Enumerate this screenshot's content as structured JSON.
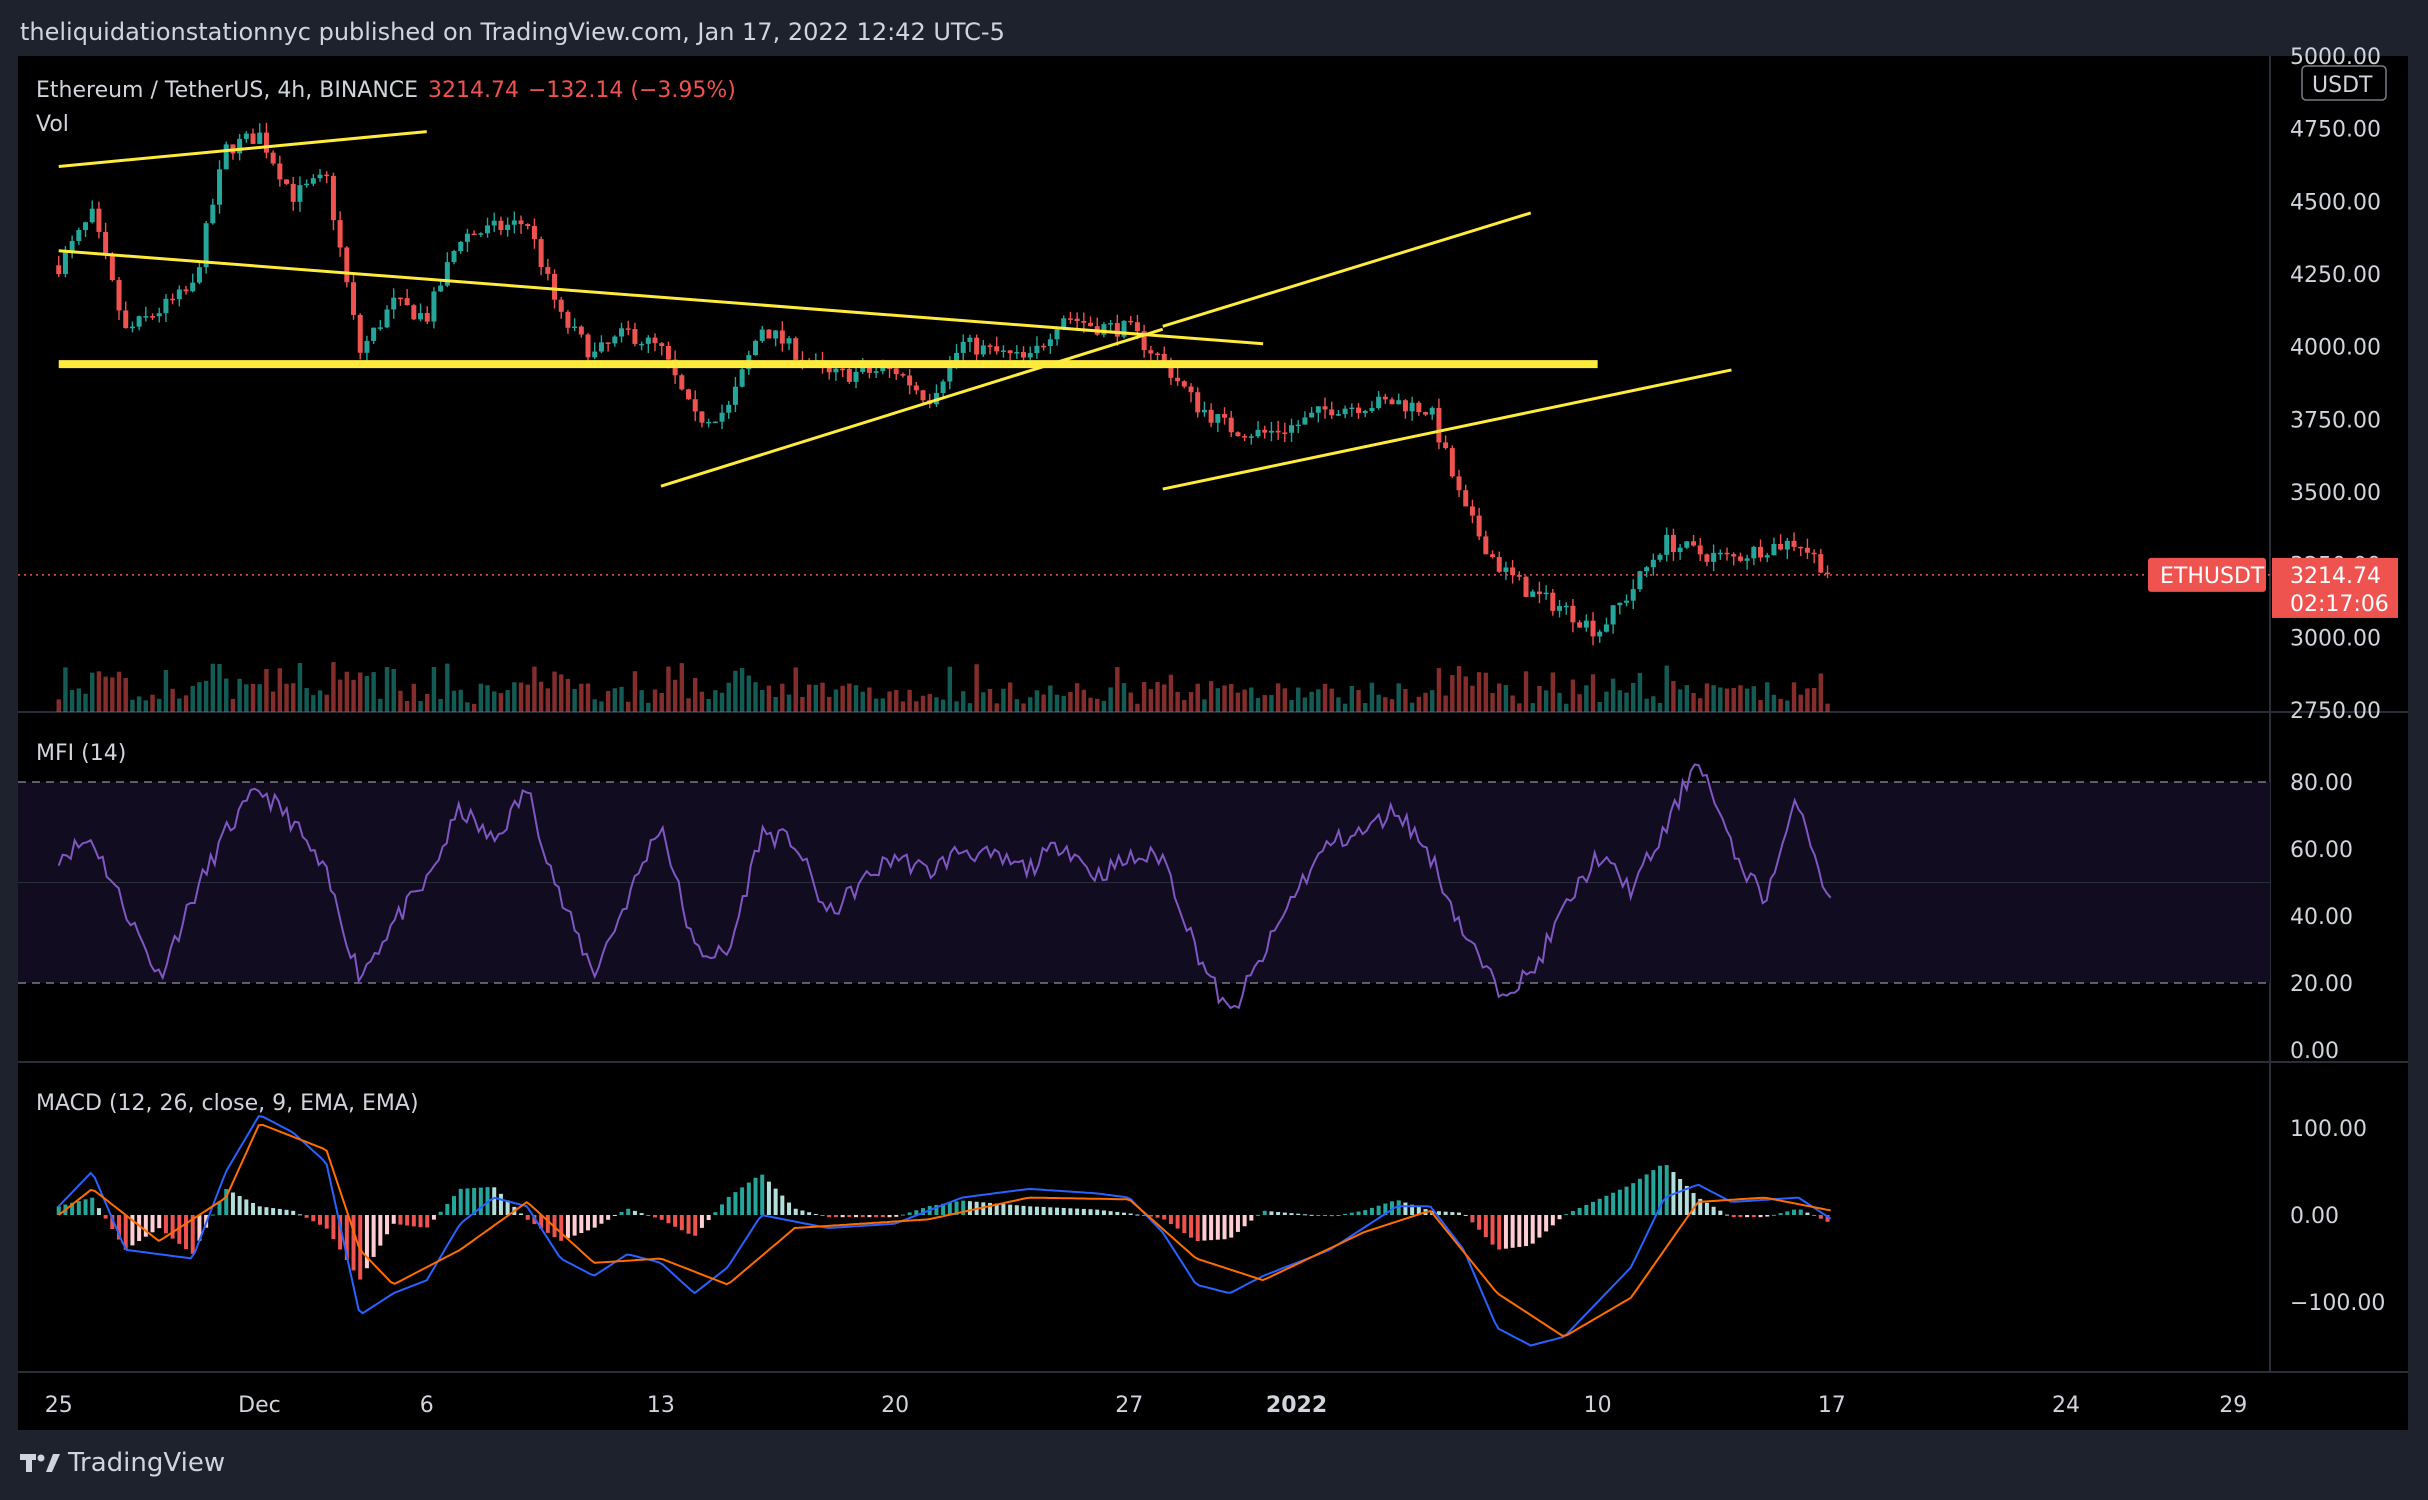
{
  "header": {
    "publish_line": "theliquidationstationnyc published on TradingView.com, Jan 17, 2022 12:42 UTC-5"
  },
  "footer": {
    "brand": "TradingView"
  },
  "colors": {
    "up": "#26a69a",
    "down": "#ef5350",
    "trend": "#ffeb3b",
    "mfi": "#7e57c2",
    "macd": "#2962ff",
    "signal": "#ff6d00",
    "bg": "#000000"
  },
  "chart_data": [
    {
      "type": "candlestick",
      "symbol_line": "Ethereum / TetherUS, 4h, BINANCE",
      "last_price": "3214.74",
      "change": "−132.14 (−3.95%)",
      "volume_label": "Vol",
      "currency": "USDT",
      "ticker": "ETHUSDT",
      "countdown": "02:17:06",
      "ylim": [
        2750,
        5000
      ],
      "yticks": [
        "5000.00",
        "4750.00",
        "4500.00",
        "4250.00",
        "4000.00",
        "3750.00",
        "3500.00",
        "3250.00",
        "3000.00",
        "2750.00"
      ],
      "x_tick_labels": [
        "25",
        "Dec",
        "6",
        "13",
        "20",
        "27",
        "2022",
        "10",
        "17",
        "24",
        "29"
      ],
      "keypoints": [
        {
          "x": "2021-11-25",
          "close": 4280
        },
        {
          "x": "2021-11-26",
          "close": 4450
        },
        {
          "x": "2021-11-27",
          "close": 4050
        },
        {
          "x": "2021-11-29",
          "close": 4200
        },
        {
          "x": "2021-11-30",
          "close": 4680
        },
        {
          "x": "2021-12-01",
          "close": 4730
        },
        {
          "x": "2021-12-02",
          "close": 4520
        },
        {
          "x": "2021-12-03",
          "close": 4580
        },
        {
          "x": "2021-12-04",
          "close": 3980
        },
        {
          "x": "2021-12-05",
          "close": 4150
        },
        {
          "x": "2021-12-06",
          "close": 4100
        },
        {
          "x": "2021-12-07",
          "close": 4380
        },
        {
          "x": "2021-12-09",
          "close": 4430
        },
        {
          "x": "2021-12-10",
          "close": 4100
        },
        {
          "x": "2021-12-11",
          "close": 3970
        },
        {
          "x": "2021-12-12",
          "close": 4050
        },
        {
          "x": "2021-12-13",
          "close": 3990
        },
        {
          "x": "2021-12-14",
          "close": 3750
        },
        {
          "x": "2021-12-15",
          "close": 3780
        },
        {
          "x": "2021-12-16",
          "close": 4070
        },
        {
          "x": "2021-12-18",
          "close": 3900
        },
        {
          "x": "2021-12-20",
          "close": 3920
        },
        {
          "x": "2021-12-21",
          "close": 3820
        },
        {
          "x": "2021-12-22",
          "close": 4010
        },
        {
          "x": "2021-12-24",
          "close": 3950
        },
        {
          "x": "2021-12-25",
          "close": 4110
        },
        {
          "x": "2021-12-26",
          "close": 4070
        },
        {
          "x": "2021-12-27",
          "close": 4060
        },
        {
          "x": "2021-12-28",
          "close": 3950
        },
        {
          "x": "2021-12-29",
          "close": 3800
        },
        {
          "x": "2021-12-30",
          "close": 3720
        },
        {
          "x": "2021-12-31",
          "close": 3700
        },
        {
          "x": "2022-01-01",
          "close": 3730
        },
        {
          "x": "2022-01-02",
          "close": 3790
        },
        {
          "x": "2022-01-04",
          "close": 3810
        },
        {
          "x": "2022-01-05",
          "close": 3780
        },
        {
          "x": "2022-01-06",
          "close": 3440
        },
        {
          "x": "2022-01-07",
          "close": 3250
        },
        {
          "x": "2022-01-08",
          "close": 3150
        },
        {
          "x": "2022-01-09",
          "close": 3100
        },
        {
          "x": "2022-01-10",
          "close": 3020
        },
        {
          "x": "2022-01-11",
          "close": 3160
        },
        {
          "x": "2022-01-12",
          "close": 3330
        },
        {
          "x": "2022-01-13",
          "close": 3290
        },
        {
          "x": "2022-01-14",
          "close": 3270
        },
        {
          "x": "2022-01-15",
          "close": 3310
        },
        {
          "x": "2022-01-16",
          "close": 3330
        },
        {
          "x": "2022-01-17",
          "close": 3214.74
        }
      ],
      "trendlines": [
        {
          "x1": "2021-11-25",
          "y1": 4620,
          "x2": "2021-12-06",
          "y2": 4740
        },
        {
          "x1": "2021-11-25",
          "y1": 4330,
          "x2": "2021-12-31",
          "y2": 4010
        },
        {
          "x1": "2021-11-25",
          "y1": 3940,
          "x2": "2022-01-10",
          "y2": 3940
        },
        {
          "x1": "2021-12-13",
          "y1": 3520,
          "x2": "2021-12-28",
          "y2": 4060
        },
        {
          "x1": "2021-12-28",
          "y1": 4070,
          "x2": "2022-01-08",
          "y2": 4460
        },
        {
          "x1": "2021-12-28",
          "y1": 3510,
          "x2": "2022-01-14",
          "y2": 3920
        }
      ]
    },
    {
      "type": "line",
      "label": "MFI (14)",
      "ylim": [
        0,
        100
      ],
      "yticks": [
        "80.00",
        "60.00",
        "40.00",
        "20.00",
        "0.00"
      ],
      "band": [
        20,
        80
      ],
      "keypoints": [
        {
          "x": "2021-11-25",
          "y": 58
        },
        {
          "x": "2021-11-26",
          "y": 63
        },
        {
          "x": "2021-11-27",
          "y": 42
        },
        {
          "x": "2021-11-28",
          "y": 22
        },
        {
          "x": "2021-11-29",
          "y": 45
        },
        {
          "x": "2021-11-30",
          "y": 65
        },
        {
          "x": "2021-12-01",
          "y": 78
        },
        {
          "x": "2021-12-02",
          "y": 68
        },
        {
          "x": "2021-12-03",
          "y": 52
        },
        {
          "x": "2021-12-04",
          "y": 22
        },
        {
          "x": "2021-12-05",
          "y": 38
        },
        {
          "x": "2021-12-06",
          "y": 50
        },
        {
          "x": "2021-12-07",
          "y": 72
        },
        {
          "x": "2021-12-08",
          "y": 62
        },
        {
          "x": "2021-12-09",
          "y": 78
        },
        {
          "x": "2021-12-10",
          "y": 45
        },
        {
          "x": "2021-12-11",
          "y": 23
        },
        {
          "x": "2021-12-12",
          "y": 45
        },
        {
          "x": "2021-12-13",
          "y": 68
        },
        {
          "x": "2021-12-14",
          "y": 30
        },
        {
          "x": "2021-12-15",
          "y": 28
        },
        {
          "x": "2021-12-16",
          "y": 65
        },
        {
          "x": "2021-12-17",
          "y": 62
        },
        {
          "x": "2021-12-18",
          "y": 40
        },
        {
          "x": "2021-12-19",
          "y": 50
        },
        {
          "x": "2021-12-20",
          "y": 58
        },
        {
          "x": "2021-12-21",
          "y": 53
        },
        {
          "x": "2021-12-22",
          "y": 60
        },
        {
          "x": "2021-12-23",
          "y": 57
        },
        {
          "x": "2021-12-24",
          "y": 54
        },
        {
          "x": "2021-12-25",
          "y": 62
        },
        {
          "x": "2021-12-26",
          "y": 52
        },
        {
          "x": "2021-12-27",
          "y": 57
        },
        {
          "x": "2021-12-28",
          "y": 58
        },
        {
          "x": "2021-12-29",
          "y": 30
        },
        {
          "x": "2021-12-30",
          "y": 10
        },
        {
          "x": "2021-12-31",
          "y": 28
        },
        {
          "x": "2022-01-01",
          "y": 48
        },
        {
          "x": "2022-01-02",
          "y": 62
        },
        {
          "x": "2022-01-03",
          "y": 65
        },
        {
          "x": "2022-01-04",
          "y": 72
        },
        {
          "x": "2022-01-05",
          "y": 58
        },
        {
          "x": "2022-01-06",
          "y": 35
        },
        {
          "x": "2022-01-07",
          "y": 18
        },
        {
          "x": "2022-01-08",
          "y": 22
        },
        {
          "x": "2022-01-09",
          "y": 42
        },
        {
          "x": "2022-01-10",
          "y": 58
        },
        {
          "x": "2022-01-11",
          "y": 48
        },
        {
          "x": "2022-01-12",
          "y": 65
        },
        {
          "x": "2022-01-13",
          "y": 88
        },
        {
          "x": "2022-01-14",
          "y": 60
        },
        {
          "x": "2022-01-15",
          "y": 45
        },
        {
          "x": "2022-01-16",
          "y": 75
        },
        {
          "x": "2022-01-17",
          "y": 42
        }
      ]
    },
    {
      "type": "line+histogram",
      "label": "MACD (12, 26, close, 9, EMA, EMA)",
      "ylim": [
        -180,
        180
      ],
      "yticks": [
        "100.00",
        "0.00",
        "−100.00"
      ],
      "macd_keypoints": [
        {
          "x": "2021-11-25",
          "y": 10
        },
        {
          "x": "2021-11-26",
          "y": 50
        },
        {
          "x": "2021-11-27",
          "y": -40
        },
        {
          "x": "2021-11-29",
          "y": -50
        },
        {
          "x": "2021-11-30",
          "y": 50
        },
        {
          "x": "2021-12-01",
          "y": 115
        },
        {
          "x": "2021-12-02",
          "y": 95
        },
        {
          "x": "2021-12-03",
          "y": 60
        },
        {
          "x": "2021-12-04",
          "y": -115
        },
        {
          "x": "2021-12-05",
          "y": -90
        },
        {
          "x": "2021-12-06",
          "y": -75
        },
        {
          "x": "2021-12-07",
          "y": -10
        },
        {
          "x": "2021-12-08",
          "y": 20
        },
        {
          "x": "2021-12-09",
          "y": 10
        },
        {
          "x": "2021-12-10",
          "y": -50
        },
        {
          "x": "2021-12-11",
          "y": -70
        },
        {
          "x": "2021-12-12",
          "y": -45
        },
        {
          "x": "2021-12-13",
          "y": -55
        },
        {
          "x": "2021-12-14",
          "y": -90
        },
        {
          "x": "2021-12-15",
          "y": -60
        },
        {
          "x": "2021-12-16",
          "y": 0
        },
        {
          "x": "2021-12-18",
          "y": -15
        },
        {
          "x": "2021-12-20",
          "y": -10
        },
        {
          "x": "2021-12-22",
          "y": 20
        },
        {
          "x": "2021-12-24",
          "y": 30
        },
        {
          "x": "2021-12-26",
          "y": 25
        },
        {
          "x": "2021-12-27",
          "y": 20
        },
        {
          "x": "2021-12-28",
          "y": -20
        },
        {
          "x": "2021-12-29",
          "y": -80
        },
        {
          "x": "2021-12-30",
          "y": -90
        },
        {
          "x": "2021-12-31",
          "y": -70
        },
        {
          "x": "2022-01-02",
          "y": -40
        },
        {
          "x": "2022-01-04",
          "y": 10
        },
        {
          "x": "2022-01-05",
          "y": 10
        },
        {
          "x": "2022-01-06",
          "y": -40
        },
        {
          "x": "2022-01-07",
          "y": -130
        },
        {
          "x": "2022-01-08",
          "y": -150
        },
        {
          "x": "2022-01-09",
          "y": -140
        },
        {
          "x": "2022-01-10",
          "y": -100
        },
        {
          "x": "2022-01-11",
          "y": -60
        },
        {
          "x": "2022-01-12",
          "y": 20
        },
        {
          "x": "2022-01-13",
          "y": 35
        },
        {
          "x": "2022-01-14",
          "y": 15
        },
        {
          "x": "2022-01-16",
          "y": 20
        },
        {
          "x": "2022-01-17",
          "y": -5
        }
      ],
      "signal_keypoints": [
        {
          "x": "2021-11-25",
          "y": 0
        },
        {
          "x": "2021-11-26",
          "y": 30
        },
        {
          "x": "2021-11-28",
          "y": -30
        },
        {
          "x": "2021-11-30",
          "y": 20
        },
        {
          "x": "2021-12-01",
          "y": 105
        },
        {
          "x": "2021-12-03",
          "y": 75
        },
        {
          "x": "2021-12-04",
          "y": -40
        },
        {
          "x": "2021-12-05",
          "y": -80
        },
        {
          "x": "2021-12-07",
          "y": -40
        },
        {
          "x": "2021-12-09",
          "y": 15
        },
        {
          "x": "2021-12-11",
          "y": -55
        },
        {
          "x": "2021-12-13",
          "y": -50
        },
        {
          "x": "2021-12-15",
          "y": -80
        },
        {
          "x": "2021-12-17",
          "y": -15
        },
        {
          "x": "2021-12-21",
          "y": -5
        },
        {
          "x": "2021-12-24",
          "y": 20
        },
        {
          "x": "2021-12-27",
          "y": 18
        },
        {
          "x": "2021-12-29",
          "y": -50
        },
        {
          "x": "2021-12-31",
          "y": -75
        },
        {
          "x": "2022-01-03",
          "y": -20
        },
        {
          "x": "2022-01-05",
          "y": 5
        },
        {
          "x": "2022-01-07",
          "y": -90
        },
        {
          "x": "2022-01-09",
          "y": -140
        },
        {
          "x": "2022-01-11",
          "y": -95
        },
        {
          "x": "2022-01-13",
          "y": 15
        },
        {
          "x": "2022-01-15",
          "y": 20
        },
        {
          "x": "2022-01-17",
          "y": 5
        }
      ]
    }
  ]
}
